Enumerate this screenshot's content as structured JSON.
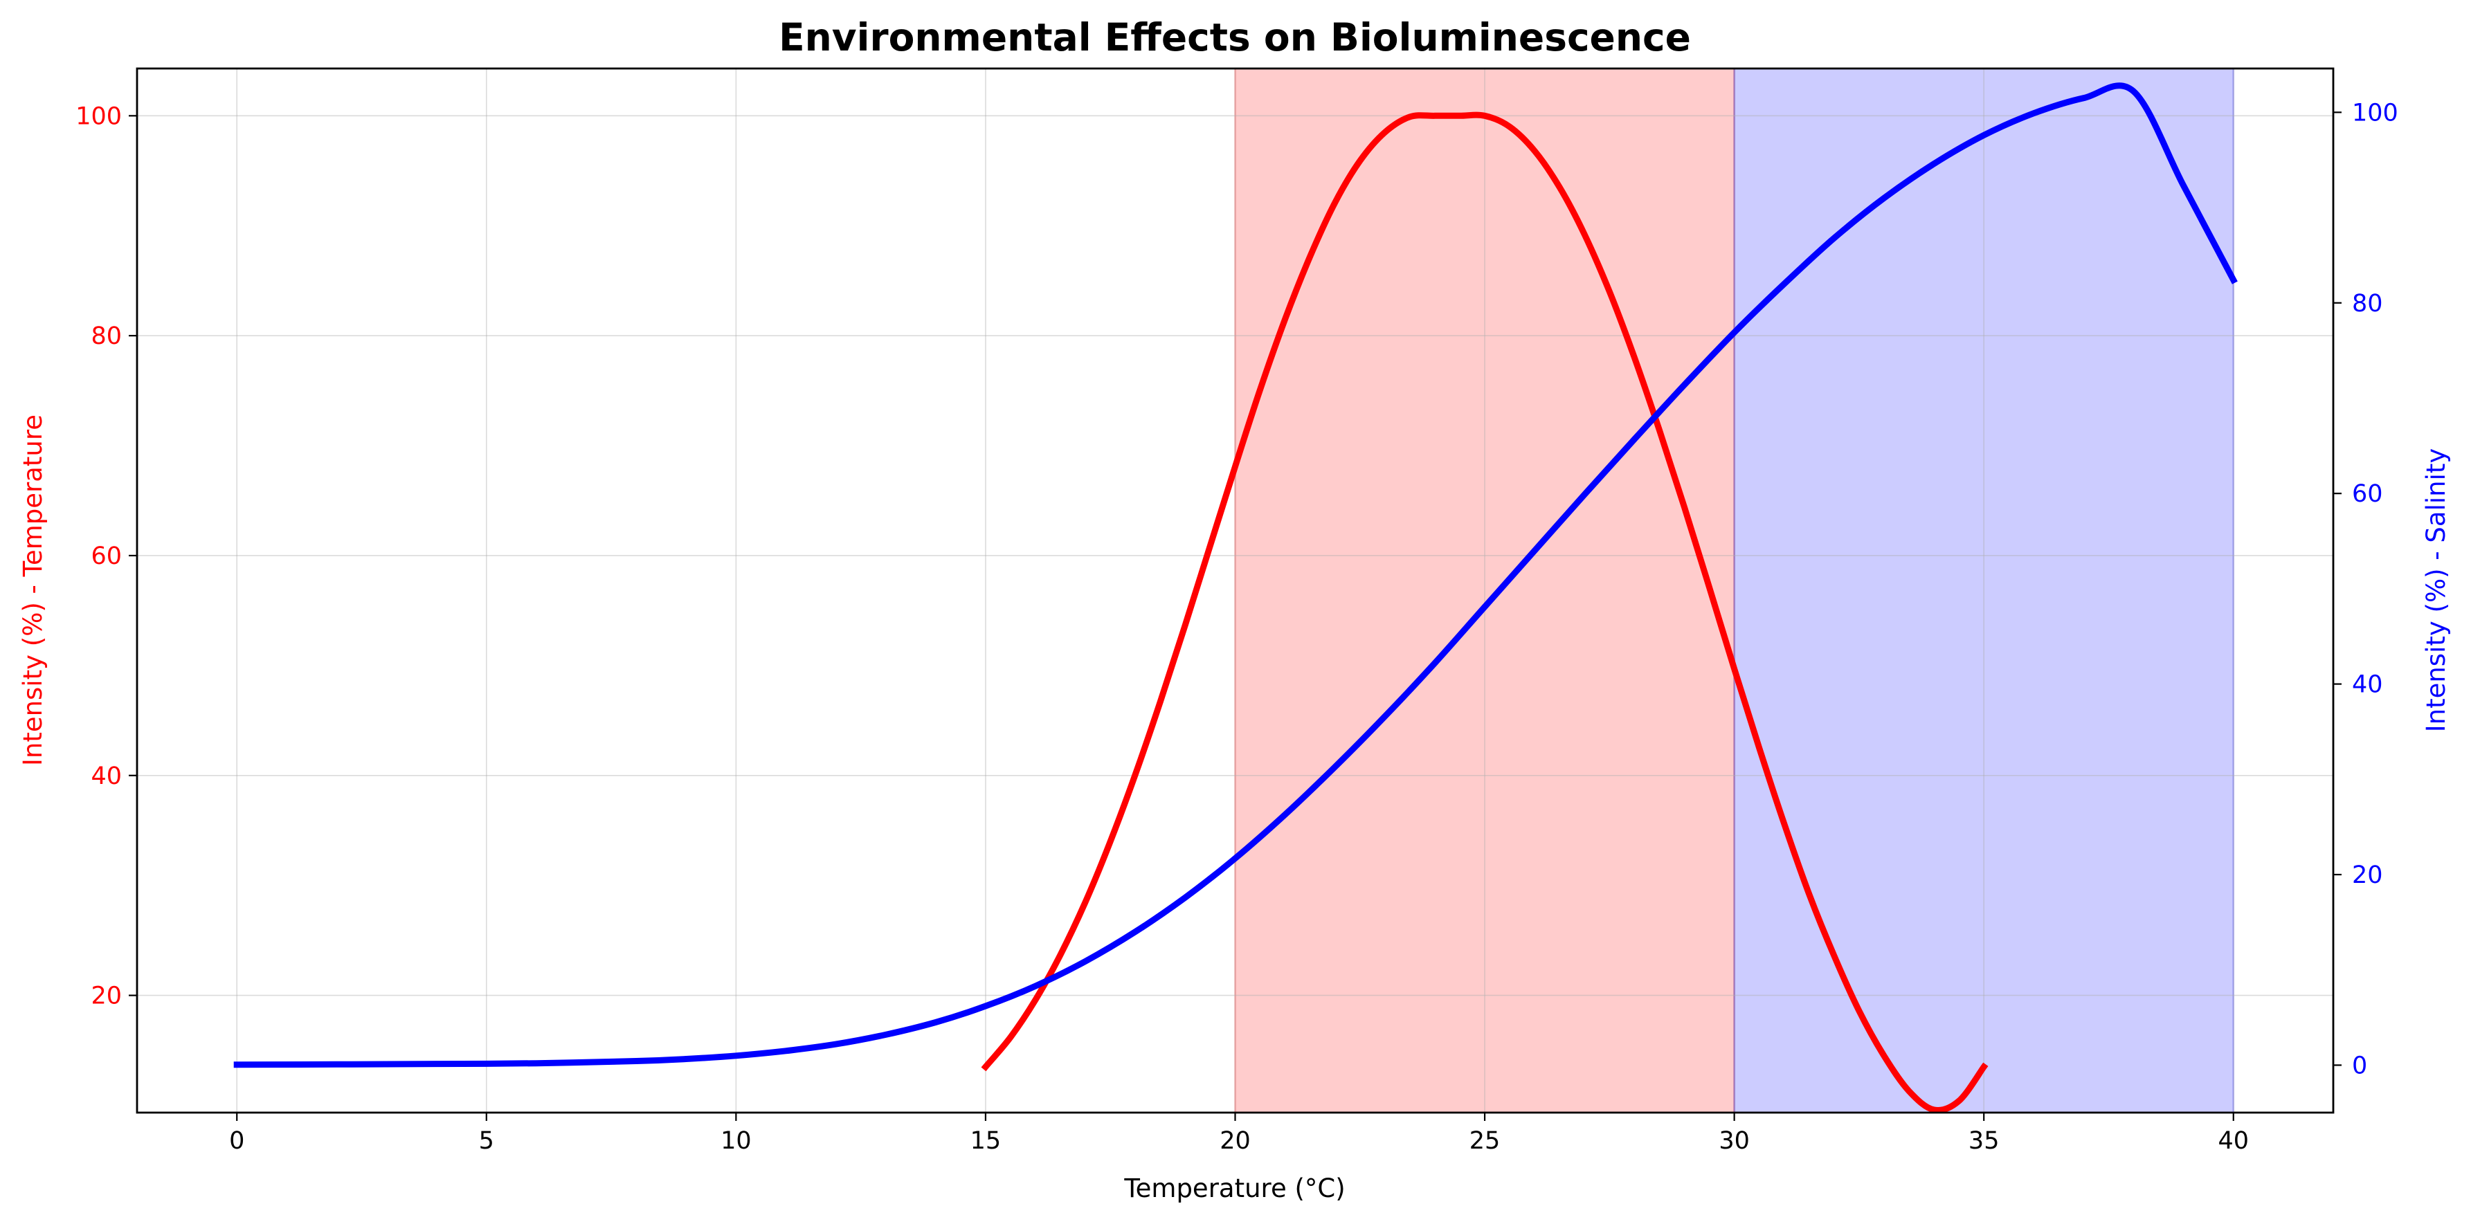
{
  "chart_data": {
    "type": "line",
    "title": "Environmental Effects on Bioluminescence",
    "xlabel": "Temperature (°C)",
    "ylabel_left": "Intensity (%) - Temperature",
    "ylabel_right": "Intensity (%) - Salinity",
    "xlim": [
      -2,
      42
    ],
    "ylim_left": [
      9.34,
      104.3
    ],
    "ylim_right": [
      -4.98,
      104.6
    ],
    "x_ticks": [
      0,
      5,
      10,
      15,
      20,
      25,
      30,
      35,
      40
    ],
    "y_ticks_left": [
      20,
      40,
      60,
      80,
      100
    ],
    "y_ticks_right": [
      0,
      20,
      40,
      60,
      80,
      100
    ],
    "grid": true,
    "colors": {
      "left_axis": "#ff0000",
      "right_axis": "#0000ff",
      "temperature_band": "#ff0000",
      "salinity_band": "#0000ff"
    },
    "shaded_regions": [
      {
        "x_range": [
          20,
          30
        ],
        "color": "#ff0000",
        "opacity": 0.2
      },
      {
        "x_range": [
          30,
          40
        ],
        "color": "#0000ff",
        "opacity": 0.2
      }
    ],
    "series": [
      {
        "axis": "left",
        "color": "#ff0000",
        "x": [
          15,
          15.5,
          16,
          16.5,
          17,
          17.5,
          18,
          18.5,
          19,
          19.5,
          20,
          20.5,
          21,
          21.5,
          22,
          22.5,
          23,
          23.5,
          24,
          24.5,
          25,
          25.5,
          26,
          26.5,
          27,
          27.5,
          28,
          28.5,
          29,
          29.5,
          30,
          30.5,
          31,
          31.5,
          32,
          32.5,
          33,
          33.5,
          34,
          34.5,
          35
        ],
        "y": [
          13.5,
          16.2,
          19.6,
          23.7,
          28.5,
          34.0,
          40.1,
          46.7,
          53.7,
          60.9,
          68.1,
          75.1,
          81.5,
          87.2,
          92.1,
          95.9,
          98.5,
          99.9,
          100.0,
          100.0,
          100.0,
          99.0,
          96.8,
          93.5,
          89.2,
          84.0,
          78.0,
          71.4,
          64.4,
          57.1,
          49.7,
          42.5,
          35.6,
          29.2,
          23.6,
          18.6,
          14.5,
          11.3,
          9.6,
          10.4,
          13.5
        ]
      },
      {
        "axis": "right",
        "color": "#0000ff",
        "x": [
          0,
          2,
          4,
          6,
          8,
          9,
          10,
          11,
          12,
          13,
          14,
          15,
          16,
          17,
          18,
          19,
          20,
          21,
          22,
          23,
          24,
          25,
          26,
          27,
          28,
          29,
          30,
          31,
          32,
          33,
          34,
          35,
          36,
          37,
          38,
          39,
          40
        ],
        "y": [
          0.05,
          0.08,
          0.13,
          0.2,
          0.43,
          0.65,
          0.99,
          1.5,
          2.2,
          3.2,
          4.5,
          6.2,
          8.3,
          10.9,
          14.0,
          17.6,
          21.7,
          26.3,
          31.3,
          36.6,
          42.2,
          48.1,
          54.0,
          59.9,
          65.7,
          71.4,
          76.9,
          82.0,
          86.8,
          91.0,
          94.6,
          97.6,
          99.9,
          101.5,
          102.2,
          92.3,
          82.4
        ]
      }
    ]
  }
}
